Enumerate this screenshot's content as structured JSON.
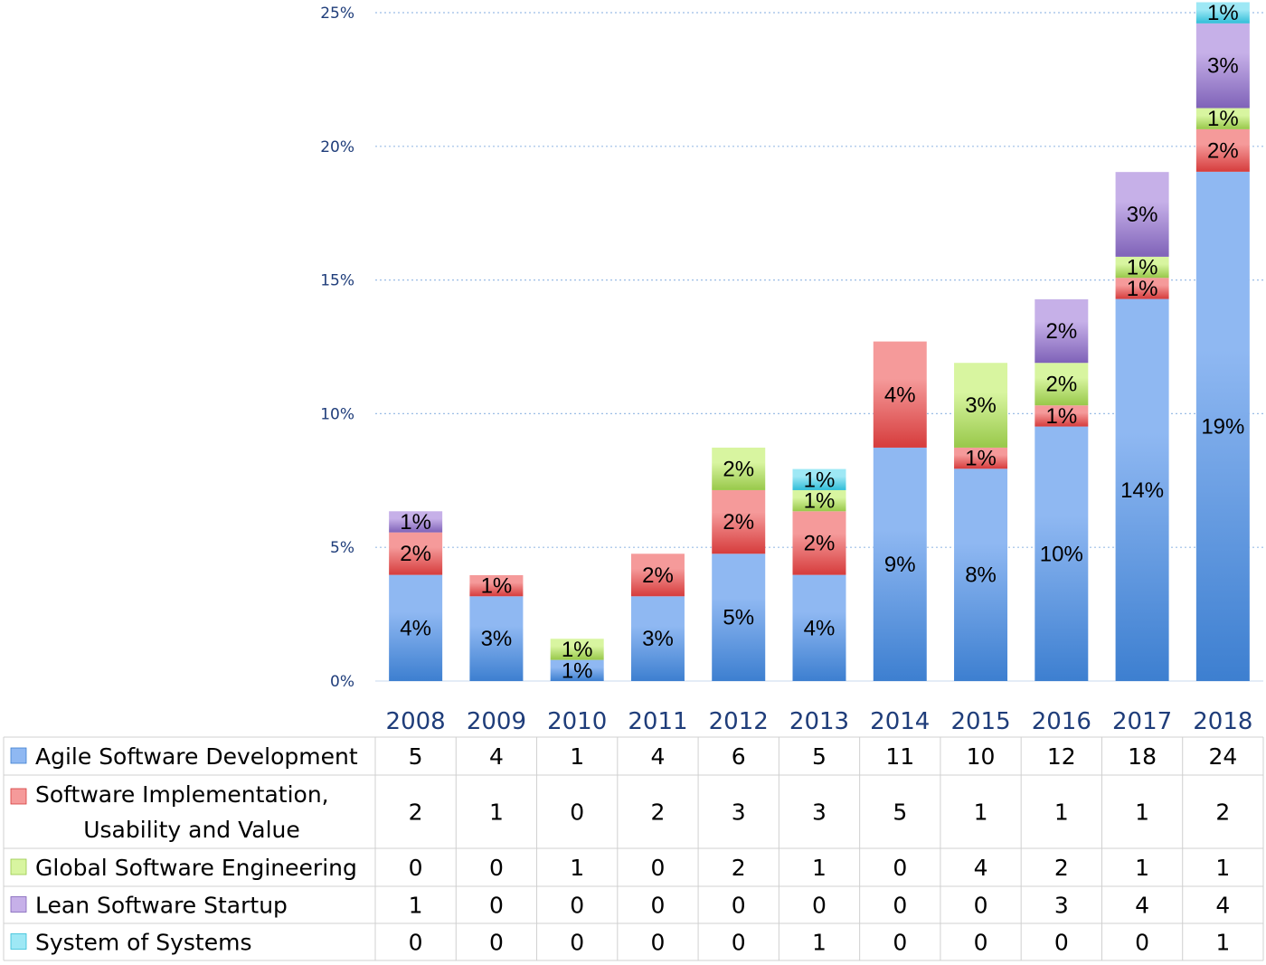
{
  "chart_data": {
    "type": "bar",
    "stacked": true,
    "categories": [
      "2008",
      "2009",
      "2010",
      "2011",
      "2012",
      "2013",
      "2014",
      "2015",
      "2016",
      "2017",
      "2018"
    ],
    "ylim": [
      0,
      25
    ],
    "yticks": [
      0,
      5,
      10,
      15,
      20,
      25
    ],
    "ytick_labels": [
      "0%",
      "5%",
      "10%",
      "15%",
      "20%",
      "25%"
    ],
    "grid": "horizontal dotted",
    "legend": "data table below chart",
    "series": [
      {
        "name": "Agile Software Development",
        "color": "#8fb8f2",
        "values": [
          3.97,
          3.17,
          0.79,
          3.17,
          4.76,
          3.97,
          8.73,
          7.94,
          9.52,
          14.29,
          19.05
        ],
        "counts": [
          5,
          4,
          1,
          4,
          6,
          5,
          11,
          10,
          12,
          18,
          24
        ]
      },
      {
        "name": "Software Implementation, Usability and Value",
        "name_lines": [
          "Software Implementation,",
          "Usability and Value"
        ],
        "color": "#f59a9a",
        "values": [
          1.59,
          0.79,
          0,
          1.59,
          2.38,
          2.38,
          3.97,
          0.79,
          0.79,
          0.79,
          1.59
        ],
        "counts": [
          2,
          1,
          0,
          2,
          3,
          3,
          5,
          1,
          1,
          1,
          2
        ]
      },
      {
        "name": "Global Software Engineering",
        "color": "#d8f5a0",
        "values": [
          0,
          0,
          0.79,
          0,
          1.59,
          0.79,
          0,
          3.17,
          1.59,
          0.79,
          0.79
        ],
        "counts": [
          0,
          0,
          1,
          0,
          2,
          1,
          0,
          4,
          2,
          1,
          1
        ]
      },
      {
        "name": "Lean Software Startup",
        "color": "#c6b0e8",
        "values": [
          0.79,
          0,
          0,
          0,
          0,
          0,
          0,
          0,
          2.38,
          3.17,
          3.17
        ],
        "counts": [
          1,
          0,
          0,
          0,
          0,
          0,
          0,
          0,
          3,
          4,
          4
        ]
      },
      {
        "name": "System of Systems",
        "color": "#9ee8f5",
        "values": [
          0,
          0,
          0,
          0,
          0,
          0.79,
          0,
          0,
          0,
          0,
          0.79
        ],
        "counts": [
          0,
          0,
          0,
          0,
          0,
          1,
          0,
          0,
          0,
          0,
          1
        ]
      }
    ]
  }
}
